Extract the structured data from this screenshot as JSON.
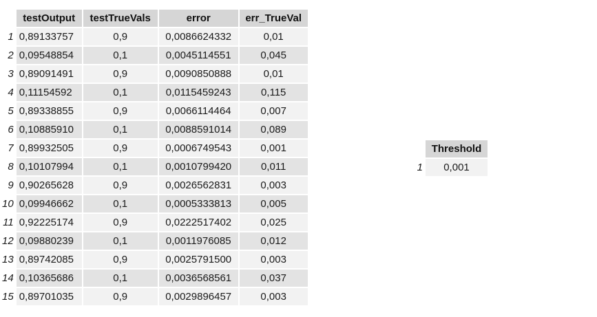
{
  "main_table": {
    "columns": [
      "testOutput",
      "testTrueVals",
      "error",
      "err_TrueVal"
    ],
    "rows": [
      {
        "index": "1",
        "testOutput": "0,89133757",
        "testTrueVals": "0,9",
        "error": "0,0086624332",
        "err_TrueVal": "0,01"
      },
      {
        "index": "2",
        "testOutput": "0,09548854",
        "testTrueVals": "0,1",
        "error": "0,0045114551",
        "err_TrueVal": "0,045"
      },
      {
        "index": "3",
        "testOutput": "0,89091491",
        "testTrueVals": "0,9",
        "error": "0,0090850888",
        "err_TrueVal": "0,01"
      },
      {
        "index": "4",
        "testOutput": "0,11154592",
        "testTrueVals": "0,1",
        "error": "0,0115459243",
        "err_TrueVal": "0,115"
      },
      {
        "index": "5",
        "testOutput": "0,89338855",
        "testTrueVals": "0,9",
        "error": "0,0066114464",
        "err_TrueVal": "0,007"
      },
      {
        "index": "6",
        "testOutput": "0,10885910",
        "testTrueVals": "0,1",
        "error": "0,0088591014",
        "err_TrueVal": "0,089"
      },
      {
        "index": "7",
        "testOutput": "0,89932505",
        "testTrueVals": "0,9",
        "error": "0,0006749543",
        "err_TrueVal": "0,001"
      },
      {
        "index": "8",
        "testOutput": "0,10107994",
        "testTrueVals": "0,1",
        "error": "0,0010799420",
        "err_TrueVal": "0,011"
      },
      {
        "index": "9",
        "testOutput": "0,90265628",
        "testTrueVals": "0,9",
        "error": "0,0026562831",
        "err_TrueVal": "0,003"
      },
      {
        "index": "10",
        "testOutput": "0,09946662",
        "testTrueVals": "0,1",
        "error": "0,0005333813",
        "err_TrueVal": "0,005"
      },
      {
        "index": "11",
        "testOutput": "0,92225174",
        "testTrueVals": "0,9",
        "error": "0,0222517402",
        "err_TrueVal": "0,025"
      },
      {
        "index": "12",
        "testOutput": "0,09880239",
        "testTrueVals": "0,1",
        "error": "0,0011976085",
        "err_TrueVal": "0,012"
      },
      {
        "index": "13",
        "testOutput": "0,89742085",
        "testTrueVals": "0,9",
        "error": "0,0025791500",
        "err_TrueVal": "0,003"
      },
      {
        "index": "14",
        "testOutput": "0,10365686",
        "testTrueVals": "0,1",
        "error": "0,0036568561",
        "err_TrueVal": "0,037"
      },
      {
        "index": "15",
        "testOutput": "0,89701035",
        "testTrueVals": "0,9",
        "error": "0,0029896457",
        "err_TrueVal": "0,003"
      }
    ]
  },
  "threshold_table": {
    "column": "Threshold",
    "rows": [
      {
        "index": "1",
        "value": "0,001"
      }
    ]
  },
  "colors": {
    "header_bg": "#d6d6d6",
    "row_odd_bg": "#f2f2f2",
    "row_even_bg": "#e3e3e3"
  }
}
